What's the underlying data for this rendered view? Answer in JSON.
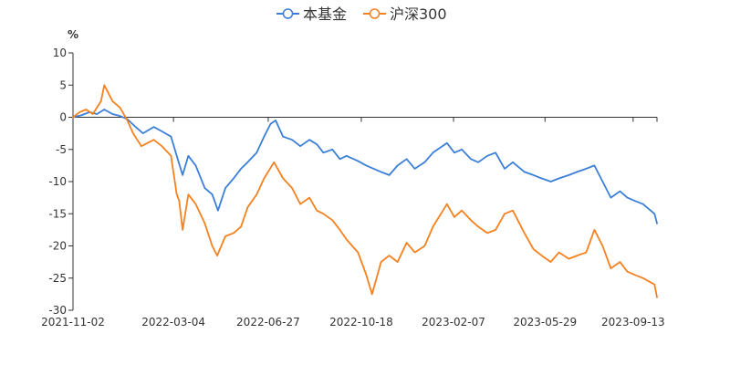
{
  "chart_data": {
    "type": "line",
    "title": "",
    "ylabel": "%",
    "xlabel": "",
    "ylim": [
      -30,
      10
    ],
    "yticks": [
      10,
      5,
      0,
      -5,
      -10,
      -15,
      -20,
      -25,
      -30
    ],
    "xticks": [
      "2021-11-02",
      "2022-03-04",
      "2022-06-27",
      "2022-10-18",
      "2023-02-07",
      "2023-05-29",
      "2023-09-13"
    ],
    "x_range": [
      "2021-11-02",
      "2023-10-12"
    ],
    "legend_position": "top-center",
    "grid": false,
    "series": [
      {
        "name": "本基金",
        "color": "#3b7fd9",
        "points": [
          [
            "2021-11-02",
            0.0
          ],
          [
            "2021-11-12",
            0.3
          ],
          [
            "2021-11-22",
            0.8
          ],
          [
            "2021-12-01",
            0.5
          ],
          [
            "2021-12-10",
            1.2
          ],
          [
            "2021-12-20",
            0.5
          ],
          [
            "2021-12-29",
            0.2
          ],
          [
            "2022-01-07",
            -0.3
          ],
          [
            "2022-01-17",
            -1.5
          ],
          [
            "2022-01-26",
            -2.5
          ],
          [
            "2022-02-08",
            -1.5
          ],
          [
            "2022-02-18",
            -2.2
          ],
          [
            "2022-03-01",
            -3.0
          ],
          [
            "2022-03-08",
            -6.0
          ],
          [
            "2022-03-15",
            -9.0
          ],
          [
            "2022-03-22",
            -6.0
          ],
          [
            "2022-03-31",
            -7.5
          ],
          [
            "2022-04-11",
            -11.0
          ],
          [
            "2022-04-20",
            -12.0
          ],
          [
            "2022-04-27",
            -14.5
          ],
          [
            "2022-05-06",
            -11.0
          ],
          [
            "2022-05-16",
            -9.5
          ],
          [
            "2022-05-25",
            -8.0
          ],
          [
            "2022-06-02",
            -7.0
          ],
          [
            "2022-06-13",
            -5.5
          ],
          [
            "2022-06-22",
            -3.0
          ],
          [
            "2022-06-30",
            -1.0
          ],
          [
            "2022-07-06",
            -0.5
          ],
          [
            "2022-07-15",
            -3.0
          ],
          [
            "2022-07-26",
            -3.5
          ],
          [
            "2022-08-05",
            -4.5
          ],
          [
            "2022-08-16",
            -3.5
          ],
          [
            "2022-08-25",
            -4.2
          ],
          [
            "2022-09-02",
            -5.5
          ],
          [
            "2022-09-13",
            -5.0
          ],
          [
            "2022-09-22",
            -6.5
          ],
          [
            "2022-09-30",
            -6.0
          ],
          [
            "2022-10-14",
            -6.8
          ],
          [
            "2022-10-24",
            -7.5
          ],
          [
            "2022-11-02",
            -8.0
          ],
          [
            "2022-11-11",
            -8.5
          ],
          [
            "2022-11-21",
            -9.0
          ],
          [
            "2022-12-01",
            -7.5
          ],
          [
            "2022-12-12",
            -6.5
          ],
          [
            "2022-12-22",
            -8.0
          ],
          [
            "2023-01-03",
            -7.0
          ],
          [
            "2023-01-13",
            -5.5
          ],
          [
            "2023-01-30",
            -4.0
          ],
          [
            "2023-02-08",
            -5.5
          ],
          [
            "2023-02-17",
            -5.0
          ],
          [
            "2023-02-28",
            -6.5
          ],
          [
            "2023-03-09",
            -7.0
          ],
          [
            "2023-03-20",
            -6.0
          ],
          [
            "2023-03-30",
            -5.5
          ],
          [
            "2023-04-10",
            -8.0
          ],
          [
            "2023-04-20",
            -7.0
          ],
          [
            "2023-05-04",
            -8.5
          ],
          [
            "2023-05-15",
            -9.0
          ],
          [
            "2023-05-25",
            -9.5
          ],
          [
            "2023-06-05",
            -10.0
          ],
          [
            "2023-06-15",
            -9.5
          ],
          [
            "2023-06-27",
            -9.0
          ],
          [
            "2023-07-07",
            -8.5
          ],
          [
            "2023-07-18",
            -8.0
          ],
          [
            "2023-07-28",
            -7.5
          ],
          [
            "2023-08-07",
            -10.0
          ],
          [
            "2023-08-17",
            -12.5
          ],
          [
            "2023-08-28",
            -11.5
          ],
          [
            "2023-09-06",
            -12.5
          ],
          [
            "2023-09-15",
            -13.0
          ],
          [
            "2023-09-25",
            -13.5
          ],
          [
            "2023-10-09",
            -15.0
          ],
          [
            "2023-10-12",
            -16.5
          ]
        ]
      },
      {
        "name": "沪深300",
        "color": "#f5811f",
        "points": [
          [
            "2021-11-02",
            0.0
          ],
          [
            "2021-11-10",
            0.8
          ],
          [
            "2021-11-18",
            1.2
          ],
          [
            "2021-11-26",
            0.5
          ],
          [
            "2021-12-06",
            2.5
          ],
          [
            "2021-12-10",
            5.0
          ],
          [
            "2021-12-20",
            2.5
          ],
          [
            "2021-12-29",
            1.5
          ],
          [
            "2022-01-07",
            -0.5
          ],
          [
            "2022-01-14",
            -2.5
          ],
          [
            "2022-01-24",
            -4.5
          ],
          [
            "2022-02-08",
            -3.5
          ],
          [
            "2022-02-18",
            -4.5
          ],
          [
            "2022-03-01",
            -6.0
          ],
          [
            "2022-03-08",
            -12.0
          ],
          [
            "2022-03-11",
            -13.0
          ],
          [
            "2022-03-15",
            -17.5
          ],
          [
            "2022-03-22",
            -12.0
          ],
          [
            "2022-03-31",
            -13.5
          ],
          [
            "2022-04-11",
            -16.5
          ],
          [
            "2022-04-20",
            -20.0
          ],
          [
            "2022-04-26",
            -21.5
          ],
          [
            "2022-05-06",
            -18.5
          ],
          [
            "2022-05-16",
            -18.0
          ],
          [
            "2022-05-25",
            -17.0
          ],
          [
            "2022-06-02",
            -14.0
          ],
          [
            "2022-06-13",
            -12.0
          ],
          [
            "2022-06-22",
            -9.5
          ],
          [
            "2022-07-04",
            -7.0
          ],
          [
            "2022-07-15",
            -9.5
          ],
          [
            "2022-07-26",
            -11.0
          ],
          [
            "2022-08-05",
            -13.5
          ],
          [
            "2022-08-16",
            -12.5
          ],
          [
            "2022-08-25",
            -14.5
          ],
          [
            "2022-09-02",
            -15.0
          ],
          [
            "2022-09-13",
            -16.0
          ],
          [
            "2022-09-22",
            -17.5
          ],
          [
            "2022-09-30",
            -19.0
          ],
          [
            "2022-10-14",
            -21.0
          ],
          [
            "2022-10-24",
            -24.5
          ],
          [
            "2022-10-31",
            -27.5
          ],
          [
            "2022-11-11",
            -22.5
          ],
          [
            "2022-11-21",
            -21.5
          ],
          [
            "2022-12-01",
            -22.5
          ],
          [
            "2022-12-12",
            -19.5
          ],
          [
            "2022-12-22",
            -21.0
          ],
          [
            "2023-01-03",
            -20.0
          ],
          [
            "2023-01-13",
            -17.0
          ],
          [
            "2023-01-30",
            -13.5
          ],
          [
            "2023-02-08",
            -15.5
          ],
          [
            "2023-02-17",
            -14.5
          ],
          [
            "2023-02-28",
            -16.0
          ],
          [
            "2023-03-09",
            -17.0
          ],
          [
            "2023-03-20",
            -18.0
          ],
          [
            "2023-03-30",
            -17.5
          ],
          [
            "2023-04-10",
            -15.0
          ],
          [
            "2023-04-20",
            -14.5
          ],
          [
            "2023-05-04",
            -18.0
          ],
          [
            "2023-05-15",
            -20.5
          ],
          [
            "2023-05-25",
            -21.5
          ],
          [
            "2023-06-05",
            -22.5
          ],
          [
            "2023-06-15",
            -21.0
          ],
          [
            "2023-06-27",
            -22.0
          ],
          [
            "2023-07-07",
            -21.5
          ],
          [
            "2023-07-18",
            -21.0
          ],
          [
            "2023-07-28",
            -17.5
          ],
          [
            "2023-08-07",
            -20.0
          ],
          [
            "2023-08-17",
            -23.5
          ],
          [
            "2023-08-28",
            -22.5
          ],
          [
            "2023-09-06",
            -24.0
          ],
          [
            "2023-09-15",
            -24.5
          ],
          [
            "2023-09-25",
            -25.0
          ],
          [
            "2023-10-09",
            -26.0
          ],
          [
            "2023-10-12",
            -28.0
          ]
        ]
      }
    ]
  }
}
